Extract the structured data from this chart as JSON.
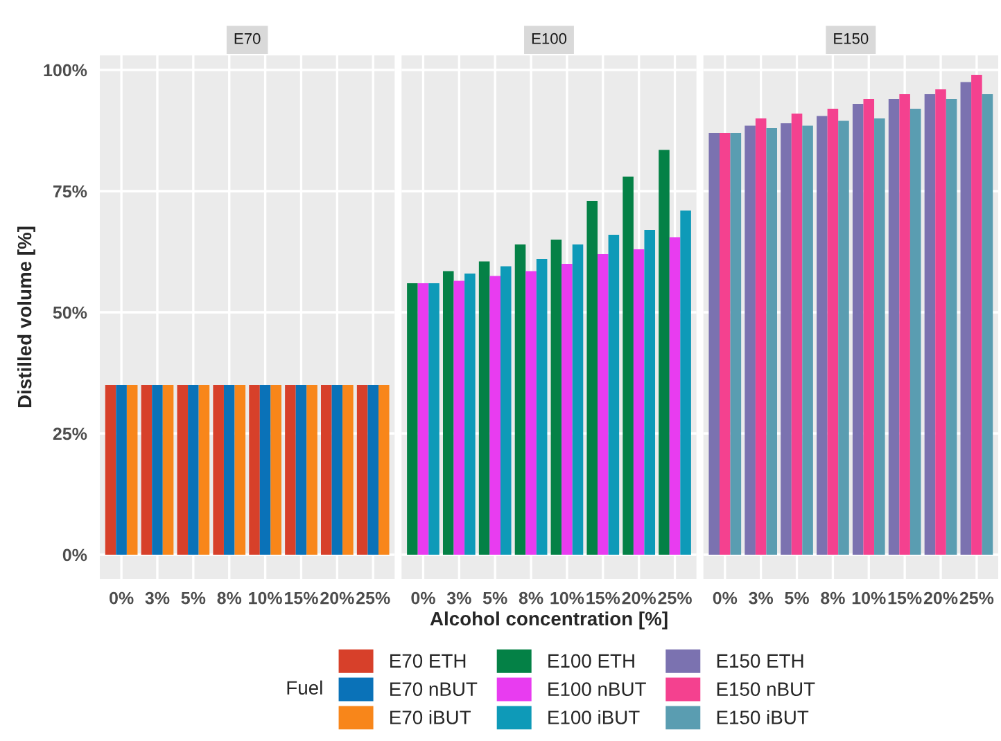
{
  "chart_data": [
    {
      "type": "bar",
      "title": "E70",
      "ylabel": "Distilled volume [%]",
      "legend_title": "Fuel",
      "legend": "bottom",
      "grid": true,
      "categories": [
        "0%",
        "3%",
        "5%",
        "8%",
        "10%",
        "15%",
        "20%",
        "25%"
      ],
      "ylim": [
        -5,
        103
      ],
      "yticks": [
        {
          "value": 0,
          "label": "0%"
        },
        {
          "value": 25,
          "label": "25%"
        },
        {
          "value": 50,
          "label": "50%"
        },
        {
          "value": 75,
          "label": "75%"
        },
        {
          "value": 100,
          "label": "100%"
        }
      ],
      "series": [
        {
          "name": "E70 ETH",
          "color": "#d7402a",
          "values": [
            35,
            35,
            35,
            35,
            35,
            35,
            35,
            35
          ]
        },
        {
          "name": "E70 nBUT",
          "color": "#0a72b8",
          "values": [
            35,
            35,
            35,
            35,
            35,
            35,
            35,
            35
          ]
        },
        {
          "name": "E70 iBUT",
          "color": "#f8861a",
          "values": [
            35,
            35,
            35,
            35,
            35,
            35,
            35,
            35
          ]
        }
      ]
    },
    {
      "type": "bar",
      "title": "E100",
      "xlabel": "Alcohol concentration [%]",
      "legend": "bottom",
      "grid": true,
      "tick_labels": "x",
      "categories": [
        "0%",
        "3%",
        "5%",
        "8%",
        "10%",
        "15%",
        "20%",
        "25%"
      ],
      "ylim": [
        -5,
        103
      ],
      "yticks": [
        0,
        25,
        50,
        75,
        100
      ],
      "series": [
        {
          "name": "E100 ETH",
          "color": "#048146",
          "values": [
            56,
            58.5,
            60.5,
            64,
            65,
            73,
            78,
            83.5
          ]
        },
        {
          "name": "E100 nBUT",
          "color": "#e83cf0",
          "values": [
            56,
            56.5,
            57.5,
            58.5,
            60,
            62,
            63,
            65.5
          ]
        },
        {
          "name": "E100 iBUT",
          "color": "#0e9ab8",
          "values": [
            56,
            58,
            59.5,
            61,
            64,
            66,
            67,
            71
          ]
        }
      ]
    },
    {
      "type": "bar",
      "title": "E150",
      "legend": "bottom",
      "grid": true,
      "tick_labels": "x",
      "categories": [
        "0%",
        "3%",
        "5%",
        "8%",
        "10%",
        "15%",
        "20%",
        "25%"
      ],
      "ylim": [
        -5,
        103
      ],
      "yticks": [
        0,
        25,
        50,
        75,
        100
      ],
      "series": [
        {
          "name": "E150 ETH",
          "color": "#7b72b0",
          "values": [
            87,
            88.5,
            89,
            90.5,
            93,
            94,
            95,
            97.5
          ]
        },
        {
          "name": "E150 nBUT",
          "color": "#f4418f",
          "values": [
            87,
            90,
            91,
            92,
            94,
            95,
            96,
            99
          ]
        },
        {
          "name": "E150 iBUT",
          "color": "#5a9db1",
          "values": [
            87,
            88,
            88.5,
            89.5,
            90,
            92,
            94,
            95
          ]
        }
      ]
    }
  ]
}
